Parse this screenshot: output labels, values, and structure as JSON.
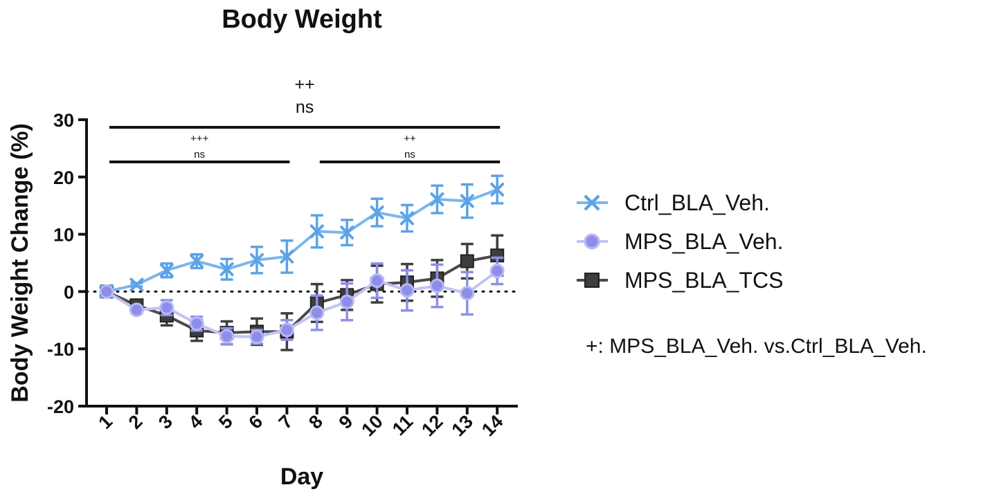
{
  "chart_data": {
    "type": "line",
    "title": "Body Weight",
    "xlabel": "Day",
    "ylabel": "Body Weight Change (%)",
    "x": [
      1,
      2,
      3,
      4,
      5,
      6,
      7,
      8,
      9,
      10,
      11,
      12,
      13,
      14
    ],
    "x_tick_labels": [
      "1",
      "2",
      "3",
      "4",
      "5",
      "6",
      "7",
      "8",
      "9",
      "10",
      "11",
      "12",
      "13",
      "14"
    ],
    "ylim": [
      -20,
      30
    ],
    "y_ticks": [
      -20,
      -10,
      0,
      10,
      20,
      30
    ],
    "y_tick_labels": [
      "-20",
      "-10",
      "0",
      "10",
      "20",
      "30"
    ],
    "reference_line_y": 0,
    "series": [
      {
        "name": "Ctrl_BLA_Veh.",
        "marker": "x",
        "color": "#5BA3E6",
        "values": [
          0,
          1.2,
          3.7,
          5.3,
          3.9,
          5.5,
          6.1,
          10.5,
          10.3,
          13.8,
          12.8,
          16.1,
          15.8,
          17.8
        ],
        "errors": [
          0.4,
          0.3,
          1.2,
          1.2,
          1.8,
          2.3,
          2.8,
          2.8,
          2.2,
          2.4,
          2.3,
          2.4,
          2.9,
          2.4
        ]
      },
      {
        "name": "MPS_BLA_Veh.",
        "marker": "circle",
        "color": "#8E8EEA",
        "values": [
          0,
          -3.2,
          -2.8,
          -5.6,
          -7.8,
          -7.9,
          -6.7,
          -3.7,
          -1.8,
          1.9,
          0.2,
          1.0,
          -0.3,
          3.6
        ],
        "errors": [
          0.4,
          0.6,
          1.3,
          1.2,
          1.4,
          1.2,
          1.7,
          3.0,
          3.2,
          3.0,
          3.5,
          3.7,
          3.7,
          2.3
        ]
      },
      {
        "name": "MPS_BLA_TCS",
        "marker": "square",
        "color": "#3E3E3E",
        "values": [
          0,
          -2.4,
          -4.2,
          -6.8,
          -7.2,
          -7.0,
          -7.0,
          -2.0,
          -0.6,
          1.3,
          1.6,
          2.3,
          5.3,
          6.3
        ],
        "errors": [
          0.4,
          0.8,
          1.7,
          1.8,
          2.0,
          2.3,
          3.2,
          3.3,
          2.6,
          3.2,
          3.2,
          3.2,
          3.0,
          3.5
        ]
      }
    ],
    "significance": [
      {
        "from_day": 1,
        "to_day": 14,
        "top": "++",
        "bottom": "ns",
        "size": "big"
      },
      {
        "from_day": 1,
        "to_day": 7,
        "top": "+++",
        "bottom": "ns",
        "size": "small"
      },
      {
        "from_day": 8,
        "to_day": 14,
        "top": "++",
        "bottom": "ns",
        "size": "small"
      }
    ],
    "legend_position": "right",
    "annotation": "+: MPS_BLA_Veh. vs.Ctrl_BLA_Veh."
  }
}
